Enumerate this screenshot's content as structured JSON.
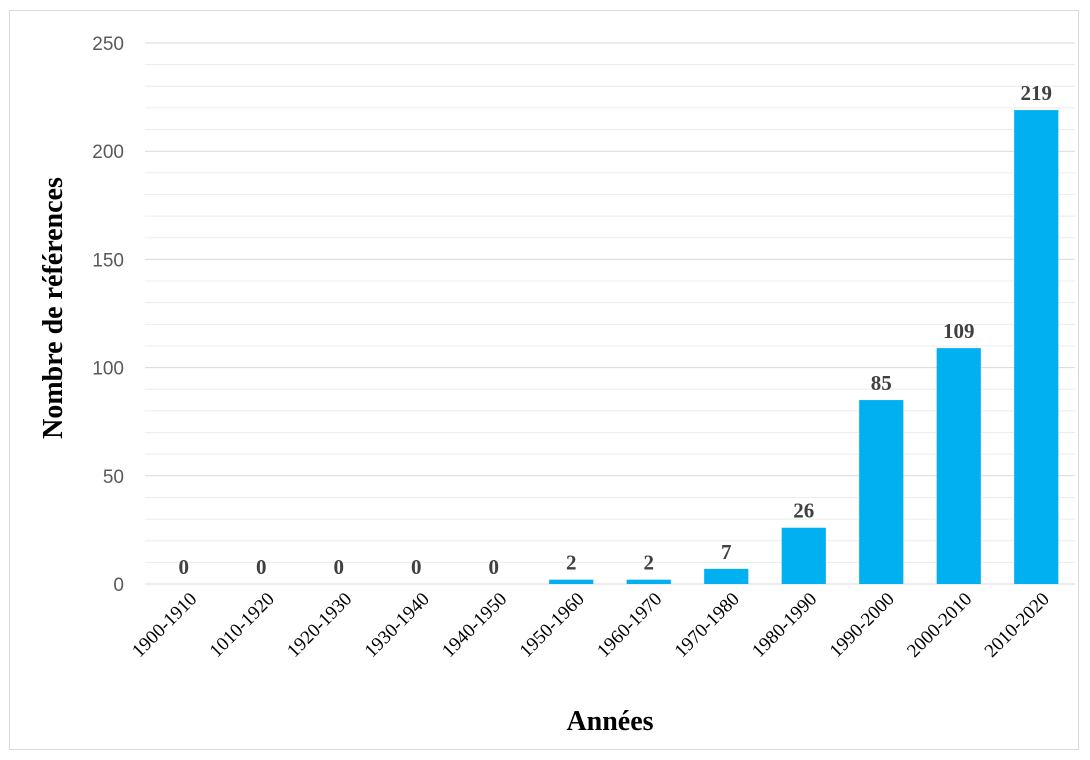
{
  "chart_data": {
    "type": "bar",
    "categories": [
      "1900-1910",
      "1010-1920",
      "1920-1930",
      "1930-1940",
      "1940-1950",
      "1950-1960",
      "1960-1970",
      "1970-1980",
      "1980-1990",
      "1990-2000",
      "2000-2010",
      "2010-2020"
    ],
    "values": [
      0,
      0,
      0,
      0,
      0,
      2,
      2,
      7,
      26,
      85,
      109,
      219
    ],
    "data_labels": [
      "0",
      "0",
      "0",
      "0",
      "0",
      "2",
      "2",
      "7",
      "26",
      "85",
      "109",
      "219"
    ],
    "title": "",
    "xlabel": "Années",
    "ylabel": "Nombre de références",
    "ylim": [
      0,
      250
    ],
    "yticks": [
      0,
      50,
      100,
      150,
      200,
      250
    ],
    "minor_grid_step": 10,
    "grid": true,
    "legend": "none",
    "bar_color": "#00b0f0"
  }
}
